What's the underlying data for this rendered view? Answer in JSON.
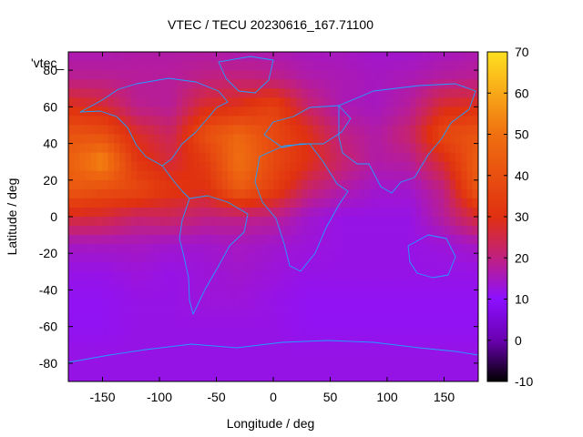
{
  "chart_data": {
    "type": "heatmap",
    "title": "VTEC / TECU 20230616_167.71100",
    "xlabel": "Longitude / deg",
    "ylabel": "Latitude / deg",
    "legend_key": "'vtec_",
    "xlim": [
      -180,
      180
    ],
    "ylim": [
      -90,
      90
    ],
    "xticks": [
      -150,
      -100,
      -50,
      0,
      50,
      100,
      150
    ],
    "yticks": [
      -80,
      -60,
      -40,
      -20,
      0,
      20,
      40,
      60,
      80
    ],
    "colorbar": {
      "min": -10,
      "max": 70,
      "ticks": [
        -10,
        0,
        10,
        20,
        30,
        40,
        50,
        60,
        70
      ],
      "colors": [
        "#000000",
        "#6a00b0",
        "#8c10ff",
        "#c02080",
        "#e03010",
        "#f07010",
        "#ffe020"
      ]
    },
    "grid": {
      "lon_start": -180,
      "lon_step": 30,
      "lat_start": 90,
      "lat_step": -15,
      "vtec": [
        [
          16,
          16,
          17,
          17,
          17,
          16,
          16,
          15,
          15,
          14,
          14,
          15
        ],
        [
          19,
          19,
          18,
          18,
          20,
          21,
          20,
          17,
          16,
          15,
          16,
          18
        ],
        [
          30,
          27,
          19,
          18,
          28,
          30,
          36,
          22,
          16,
          15,
          18,
          28
        ],
        [
          41,
          40,
          28,
          23,
          40,
          47,
          38,
          30,
          20,
          17,
          22,
          38
        ],
        [
          45,
          55,
          32,
          26,
          33,
          50,
          38,
          30,
          22,
          17,
          18,
          28
        ],
        [
          43,
          40,
          38,
          32,
          30,
          44,
          35,
          22,
          17,
          14,
          14,
          20
        ],
        [
          27,
          26,
          22,
          23,
          20,
          20,
          19,
          14,
          12,
          12,
          12,
          18
        ],
        [
          15,
          15,
          15,
          14,
          14,
          15,
          14,
          13,
          12,
          12,
          12,
          13
        ],
        [
          12,
          12,
          13,
          12,
          13,
          14,
          13,
          12,
          12,
          12,
          12,
          12
        ],
        [
          11,
          11,
          12,
          12,
          13,
          13,
          12,
          11,
          11,
          11,
          11,
          11
        ],
        [
          11,
          11,
          12,
          12,
          12,
          12,
          12,
          11,
          11,
          11,
          11,
          11
        ],
        [
          12,
          12,
          12,
          12,
          12,
          12,
          12,
          12,
          12,
          12,
          12,
          12
        ],
        [
          12,
          12,
          12,
          12,
          12,
          12,
          12,
          12,
          12,
          12,
          12,
          12
        ]
      ]
    }
  }
}
